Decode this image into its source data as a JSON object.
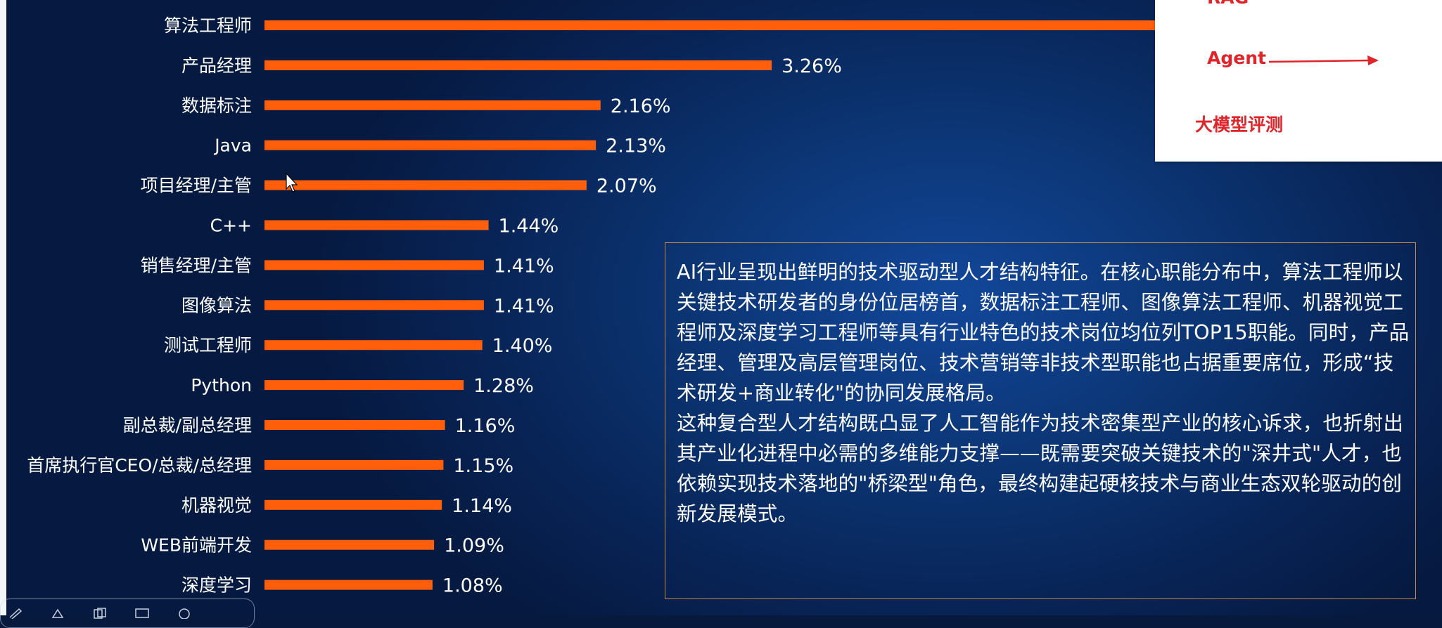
{
  "chart_data": {
    "type": "bar",
    "orientation": "horizontal",
    "categories": [
      "算法工程师",
      "产品经理",
      "数据标注",
      "Java",
      "项目经理/主管",
      "C++",
      "销售经理/主管",
      "图像算法",
      "测试工程师",
      "Python",
      "副总裁/副总经理",
      "首席执行官CEO/总裁/总经理",
      "机器视觉",
      "WEB前端开发",
      "深度学习"
    ],
    "values": [
      null,
      3.26,
      2.16,
      2.13,
      2.07,
      1.44,
      1.41,
      1.41,
      1.4,
      1.28,
      1.16,
      1.15,
      1.14,
      1.09,
      1.08
    ],
    "value_labels": [
      "",
      "3.26%",
      "2.16%",
      "2.13%",
      "2.07%",
      "1.44%",
      "1.41%",
      "1.41%",
      "1.40%",
      "1.28%",
      "1.16%",
      "1.15%",
      "1.14%",
      "1.09%",
      "1.08%"
    ],
    "xlim": [
      0,
      6.3
    ],
    "bar_color": "#ff5f0a",
    "grid": false,
    "legend": "none"
  },
  "description": {
    "paragraph1": "AI行业呈现出鲜明的技术驱动型人才结构特征。在核心职能分布中，算法工程师以关键技术研发者的身份位居榜首，数据标注工程师、图像算法工程师、机器视觉工程师及深度学习工程师等具有行业特色的技术岗位均位列TOP15职能。同时，产品经理、管理及高层管理岗位、技术营销等非技术型职能也占据重要席位，形成“技术研发+商业转化\"的协同发展格局。",
    "paragraph2": "这种复合型人才结构既凸显了人工智能作为技术密集型产业的核心诉求，也折射出其产业化进程中必需的多维能力支撑——既需要突破关键技术的\"深井式\"人才，也依赖实现技术落地的\"桥梁型\"角色，最终构建起硬核技术与商业生态双轮驱动的创新发展模式。"
  },
  "overlay_panel": {
    "items": [
      "RAG",
      "Agent",
      "大模型评测"
    ],
    "text_color": "#e0242a"
  },
  "colors": {
    "background": "#0b3370",
    "box_border": "#c98a4a"
  },
  "icons": [
    "arrow-right-icon",
    "mouse-cursor-icon",
    "pen-tool-icon",
    "eraser-tool-icon",
    "copy-tool-icon",
    "screen-tool-icon",
    "circle-tool-icon"
  ]
}
